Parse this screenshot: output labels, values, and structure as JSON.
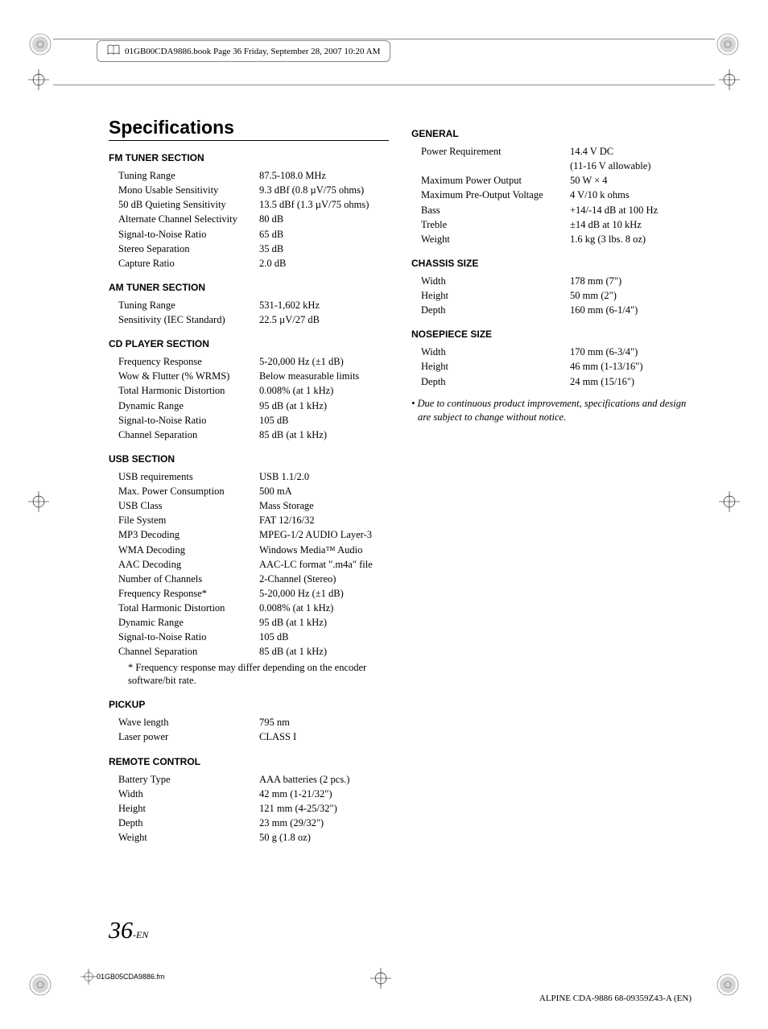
{
  "header": {
    "text": "01GB00CDA9886.book  Page 36  Friday, September 28, 2007  10:20 AM"
  },
  "title": "Specifications",
  "left_sections": [
    {
      "heading": "FM TUNER SECTION",
      "rows": [
        {
          "label": "Tuning Range",
          "value": "87.5-108.0 MHz"
        },
        {
          "label": "Mono Usable Sensitivity",
          "value": "9.3 dBf (0.8 µV/75 ohms)"
        },
        {
          "label": "50 dB Quieting Sensitivity",
          "value": "13.5 dBf (1.3 µV/75 ohms)"
        },
        {
          "label": "Alternate Channel Selectivity",
          "value": "80 dB"
        },
        {
          "label": "Signal-to-Noise Ratio",
          "value": "65 dB"
        },
        {
          "label": "Stereo Separation",
          "value": "35 dB"
        },
        {
          "label": "Capture Ratio",
          "value": "2.0 dB"
        }
      ]
    },
    {
      "heading": "AM TUNER SECTION",
      "rows": [
        {
          "label": "Tuning Range",
          "value": "531-1,602 kHz"
        },
        {
          "label": "Sensitivity (IEC Standard)",
          "value": "22.5 µV/27 dB"
        }
      ]
    },
    {
      "heading": "CD PLAYER SECTION",
      "rows": [
        {
          "label": "Frequency Response",
          "value": "5-20,000 Hz (±1 dB)"
        },
        {
          "label": "Wow & Flutter (% WRMS)",
          "value": "Below measurable limits"
        },
        {
          "label": "Total Harmonic Distortion",
          "value": "0.008% (at 1 kHz)"
        },
        {
          "label": "Dynamic Range",
          "value": "95 dB (at 1 kHz)"
        },
        {
          "label": "Signal-to-Noise Ratio",
          "value": "105 dB"
        },
        {
          "label": "Channel Separation",
          "value": "85 dB (at 1 kHz)"
        }
      ]
    },
    {
      "heading": "USB SECTION",
      "rows": [
        {
          "label": "USB requirements",
          "value": "USB 1.1/2.0"
        },
        {
          "label": "Max. Power Consumption",
          "value": "500 mA"
        },
        {
          "label": "USB Class",
          "value": "Mass Storage"
        },
        {
          "label": "File System",
          "value": "FAT 12/16/32"
        },
        {
          "label": "MP3 Decoding",
          "value": "MPEG-1/2 AUDIO Layer-3"
        },
        {
          "label": "WMA Decoding",
          "value": "Windows Media™ Audio"
        },
        {
          "label": "AAC Decoding",
          "value": "AAC-LC format \".m4a\" file"
        },
        {
          "label": "Number of Channels",
          "value": "2-Channel (Stereo)"
        },
        {
          "label": "Frequency Response*",
          "value": "5-20,000 Hz (±1 dB)"
        },
        {
          "label": "Total Harmonic Distortion",
          "value": "0.008% (at 1 kHz)"
        },
        {
          "label": "Dynamic Range",
          "value": "95 dB (at 1 kHz)"
        },
        {
          "label": "Signal-to-Noise Ratio",
          "value": "105 dB"
        },
        {
          "label": "Channel Separation",
          "value": "85 dB (at 1 kHz)"
        }
      ],
      "footnote": "* Frequency response may differ depending on the encoder software/bit rate."
    },
    {
      "heading": "PICKUP",
      "rows": [
        {
          "label": "Wave length",
          "value": "795 nm"
        },
        {
          "label": "Laser power",
          "value": "CLASS I"
        }
      ]
    },
    {
      "heading": "REMOTE CONTROL",
      "rows": [
        {
          "label": "Battery Type",
          "value": "AAA batteries (2 pcs.)"
        },
        {
          "label": "Width",
          "value": "42 mm (1-21/32\")"
        },
        {
          "label": "Height",
          "value": "121 mm (4-25/32\")"
        },
        {
          "label": "Depth",
          "value": "23 mm (29/32\")"
        },
        {
          "label": "Weight",
          "value": "50 g (1.8 oz)"
        }
      ]
    }
  ],
  "right_sections": [
    {
      "heading": "GENERAL",
      "rows": [
        {
          "label": "Power Requirement",
          "value": "14.4 V DC"
        }
      ],
      "extra_line": "(11-16 V allowable)",
      "rows2": [
        {
          "label": "Maximum Power Output",
          "value": "50 W × 4"
        },
        {
          "label": "Maximum Pre-Output Voltage",
          "value": "4 V/10 k ohms"
        },
        {
          "label": "Bass",
          "value": "+14/-14 dB at 100 Hz"
        },
        {
          "label": "Treble",
          "value": "±14 dB at 10 kHz"
        },
        {
          "label": "Weight",
          "value": "1.6 kg (3 lbs. 8 oz)"
        }
      ]
    },
    {
      "heading": "CHASSIS SIZE",
      "rows": [
        {
          "label": "Width",
          "value": "178 mm (7\")"
        },
        {
          "label": "Height",
          "value": "50 mm (2\")"
        },
        {
          "label": "Depth",
          "value": "160 mm (6-1/4\")"
        }
      ]
    },
    {
      "heading": "NOSEPIECE SIZE",
      "rows": [
        {
          "label": "Width",
          "value": "170 mm (6-3/4\")"
        },
        {
          "label": "Height",
          "value": "46 mm (1-13/16\")"
        },
        {
          "label": "Depth",
          "value": "24 mm (15/16\")"
        }
      ]
    }
  ],
  "right_note": "• Due to continuous product improvement, specifications and design are subject to change without notice.",
  "page_number": "36",
  "page_suffix": "-EN",
  "footer_fm": "01GB05CDA9886.fm",
  "footer_right": "ALPINE CDA-9886 68-09359Z43-A (EN)"
}
